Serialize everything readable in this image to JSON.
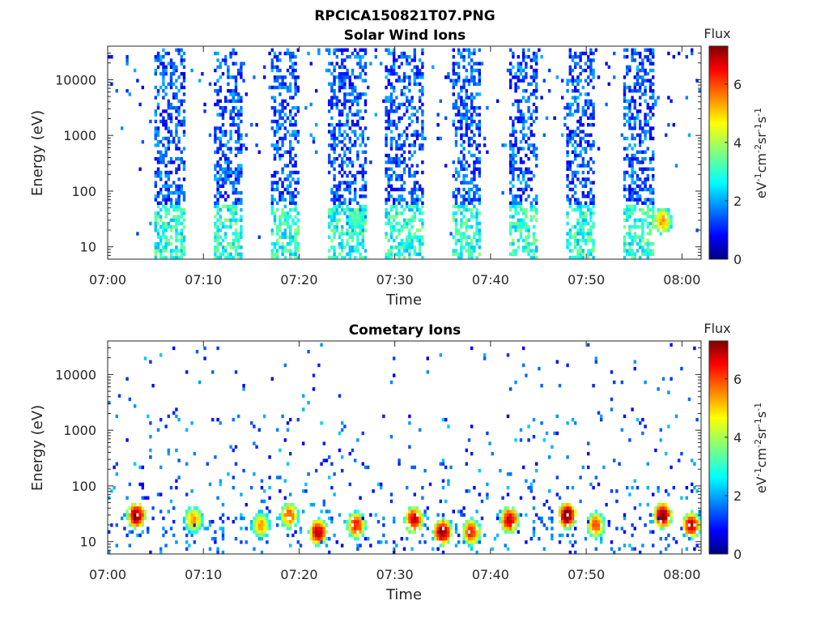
{
  "figure_title": "RPCICA150821T07.PNG",
  "colorbar": {
    "title": "Flux",
    "label_base": "eV",
    "label_parts": [
      "eV",
      "-1",
      "cm",
      "-2",
      "sr",
      "-1",
      "s",
      "-1"
    ],
    "ticks": [
      0,
      2,
      4,
      6
    ],
    "range": [
      0,
      7.3
    ],
    "colormap": "jet"
  },
  "chart_data": [
    {
      "type": "heatmap",
      "title": "Solar Wind Ions",
      "xlabel": "Time",
      "ylabel": "Energy (eV)",
      "x_ticks": [
        "07:00",
        "07:10",
        "07:20",
        "07:30",
        "07:40",
        "07:50",
        "08:00"
      ],
      "x_range": [
        "07:00",
        "08:02"
      ],
      "y_scale": "log",
      "y_ticks": [
        "10",
        "100",
        "1000",
        "10000"
      ],
      "y_range": [
        6,
        40000
      ],
      "z_label": "Flux",
      "z_range": [
        0,
        7.3
      ],
      "bursts": [
        {
          "start": "07:05",
          "end": "07:08"
        },
        {
          "start": "07:11",
          "end": "07:14"
        },
        {
          "start": "07:17",
          "end": "07:20"
        },
        {
          "start": "07:23",
          "end": "07:27"
        },
        {
          "start": "07:29",
          "end": "07:33"
        },
        {
          "start": "07:36",
          "end": "07:39"
        },
        {
          "start": "07:42",
          "end": "07:45"
        },
        {
          "start": "07:48",
          "end": "07:51"
        },
        {
          "start": "07:54",
          "end": "07:57"
        }
      ],
      "hot_spots": [
        {
          "time": "07:26",
          "energy": 30,
          "flux": 3.2
        },
        {
          "time": "07:58",
          "energy": 30,
          "flux": 5.0
        }
      ]
    },
    {
      "type": "heatmap",
      "title": "Cometary Ions",
      "xlabel": "Time",
      "ylabel": "Energy (eV)",
      "x_ticks": [
        "07:00",
        "07:10",
        "07:20",
        "07:30",
        "07:40",
        "07:50",
        "08:00"
      ],
      "x_range": [
        "07:00",
        "08:02"
      ],
      "y_scale": "log",
      "y_ticks": [
        "10",
        "100",
        "1000",
        "10000"
      ],
      "y_range": [
        6,
        40000
      ],
      "z_label": "Flux",
      "z_range": [
        0,
        7.3
      ],
      "hot_spots": [
        {
          "time": "07:03",
          "energy": 30,
          "flux": 7.0
        },
        {
          "time": "07:09",
          "energy": 25,
          "flux": 5.0
        },
        {
          "time": "07:16",
          "energy": 20,
          "flux": 5.0
        },
        {
          "time": "07:19",
          "energy": 30,
          "flux": 5.5
        },
        {
          "time": "07:22",
          "energy": 15,
          "flux": 6.5
        },
        {
          "time": "07:26",
          "energy": 20,
          "flux": 6.0
        },
        {
          "time": "07:32",
          "energy": 25,
          "flux": 6.5
        },
        {
          "time": "07:35",
          "energy": 15,
          "flux": 7.0
        },
        {
          "time": "07:38",
          "energy": 15,
          "flux": 6.0
        },
        {
          "time": "07:42",
          "energy": 25,
          "flux": 6.5
        },
        {
          "time": "07:48",
          "energy": 30,
          "flux": 7.2
        },
        {
          "time": "07:51",
          "energy": 20,
          "flux": 5.5
        },
        {
          "time": "07:58",
          "energy": 30,
          "flux": 7.0
        },
        {
          "time": "08:01",
          "energy": 20,
          "flux": 6.5
        }
      ]
    }
  ]
}
